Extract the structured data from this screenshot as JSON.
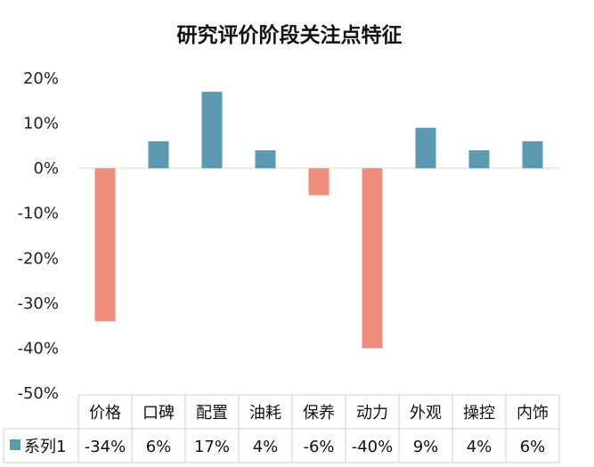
{
  "chart_data": {
    "type": "bar",
    "title": "研究评价阶段关注点特征",
    "categories": [
      "价格",
      "口碑",
      "配置",
      "油耗",
      "保养",
      "动力",
      "外观",
      "操控",
      "内饰"
    ],
    "series": [
      {
        "name": "系列1",
        "values": [
          -34,
          6,
          17,
          4,
          -6,
          -40,
          9,
          4,
          6
        ],
        "labels": [
          "-34%",
          "6%",
          "17%",
          "4%",
          "-6%",
          "-40%",
          "9%",
          "4%",
          "6%"
        ]
      }
    ],
    "ylim": [
      -50,
      20
    ],
    "y_ticks": [
      "20%",
      "10%",
      "0%",
      "-10%",
      "-20%",
      "-30%",
      "-40%",
      "-50%"
    ],
    "grid": false,
    "legend": "bottom data table",
    "colors": {
      "positive": "#5b99b3",
      "negative": "#f08c7c"
    }
  }
}
